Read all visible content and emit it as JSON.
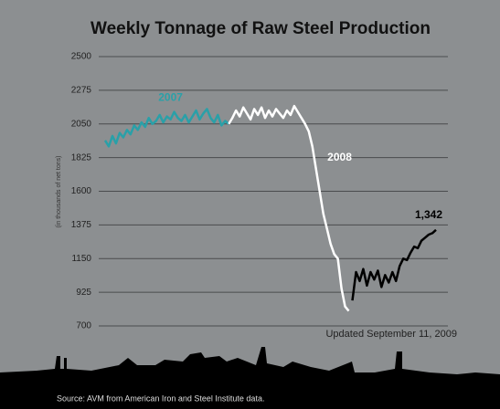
{
  "chart_data": {
    "type": "line",
    "title": "Weekly Tonnage of Raw Steel Production",
    "y_label": "(in thousands of net tons)",
    "note": "Updated September 11, 2009",
    "source": "Source: AVM from American Iron and Steel Institute data.",
    "categories": [
      null,
      null,
      null,
      null,
      null,
      null,
      null,
      null,
      null,
      null,
      null,
      null,
      null,
      null,
      null,
      null,
      null,
      null,
      null,
      null,
      null,
      null,
      null,
      null,
      null,
      null,
      null,
      null,
      null,
      null,
      null,
      null,
      null,
      null,
      null,
      null,
      null,
      null,
      null,
      null,
      null,
      null,
      null,
      null,
      null,
      null,
      null,
      null,
      null,
      null,
      null,
      null,
      null,
      null,
      null,
      null,
      null,
      null,
      null,
      null,
      null,
      null,
      null,
      null,
      null,
      null,
      null,
      null,
      null,
      null,
      null,
      null,
      null,
      null,
      null,
      null,
      null,
      null,
      null,
      null,
      null,
      null,
      null,
      null,
      null,
      null,
      null,
      null,
      null,
      null,
      null,
      null
    ],
    "series": [
      {
        "name": "2007",
        "color": "#2aa0a8",
        "values": [
          1940,
          1900,
          1970,
          1920,
          1990,
          1960,
          2010,
          1980,
          2040,
          2010,
          2060,
          2030,
          2090,
          2050,
          2070,
          2110,
          2060,
          2100,
          2080,
          2130,
          2090,
          2070,
          2110,
          2060,
          2100,
          2140,
          2080,
          2120,
          2150,
          2090,
          2060,
          2110,
          2040,
          2070,
          2050,
          null,
          null,
          null,
          null,
          null,
          null,
          null,
          null,
          null,
          null,
          null,
          null,
          null,
          null,
          null,
          null,
          null,
          null,
          null,
          null,
          null,
          null,
          null,
          null,
          null,
          null,
          null,
          null,
          null,
          null,
          null,
          null,
          null,
          null,
          null,
          null,
          null,
          null,
          null,
          null,
          null,
          null,
          null,
          null,
          null,
          null,
          null,
          null,
          null,
          null,
          null,
          null,
          null,
          null,
          null,
          null,
          null
        ]
      },
      {
        "name": "2008",
        "color": "#ffffff",
        "values": [
          null,
          null,
          null,
          null,
          null,
          null,
          null,
          null,
          null,
          null,
          null,
          null,
          null,
          null,
          null,
          null,
          null,
          null,
          null,
          null,
          null,
          null,
          null,
          null,
          null,
          null,
          null,
          null,
          null,
          null,
          null,
          null,
          null,
          null,
          2050,
          2090,
          2140,
          2100,
          2160,
          2120,
          2080,
          2150,
          2110,
          2160,
          2090,
          2140,
          2100,
          2150,
          2120,
          2090,
          2140,
          2110,
          2170,
          2130,
          2090,
          2050,
          2000,
          1900,
          1750,
          1600,
          1450,
          1350,
          1250,
          1180,
          1150,
          950,
          830,
          800,
          null,
          null,
          null,
          null,
          null,
          null,
          null,
          null,
          null,
          null,
          null,
          null,
          null,
          null,
          null,
          null,
          null,
          null,
          null,
          null,
          null,
          null,
          null,
          null
        ]
      },
      {
        "color": "#000000",
        "values": [
          null,
          null,
          null,
          null,
          null,
          null,
          null,
          null,
          null,
          null,
          null,
          null,
          null,
          null,
          null,
          null,
          null,
          null,
          null,
          null,
          null,
          null,
          null,
          null,
          null,
          null,
          null,
          null,
          null,
          null,
          null,
          null,
          null,
          null,
          null,
          null,
          null,
          null,
          null,
          null,
          null,
          null,
          null,
          null,
          null,
          null,
          null,
          null,
          null,
          null,
          null,
          null,
          null,
          null,
          null,
          null,
          null,
          null,
          null,
          null,
          null,
          null,
          null,
          null,
          null,
          null,
          null,
          null,
          870,
          1060,
          1000,
          1080,
          970,
          1060,
          1010,
          1070,
          960,
          1040,
          990,
          1060,
          1000,
          1100,
          1150,
          1140,
          1190,
          1230,
          1220,
          1270,
          1290,
          1310,
          1320,
          1342
        ],
        "value_labels": [
          null,
          null,
          null,
          null,
          null,
          null,
          null,
          null,
          null,
          null,
          null,
          null,
          null,
          null,
          null,
          null,
          null,
          null,
          null,
          null,
          null,
          null,
          null,
          null,
          null,
          null,
          null,
          null,
          null,
          null,
          null,
          null,
          null,
          null,
          null,
          null,
          null,
          null,
          null,
          null,
          null,
          null,
          null,
          null,
          null,
          null,
          null,
          null,
          null,
          null,
          null,
          null,
          null,
          null,
          null,
          null,
          null,
          null,
          null,
          null,
          null,
          null,
          null,
          null,
          null,
          null,
          null,
          null,
          null,
          null,
          null,
          null,
          null,
          null,
          null,
          null,
          null,
          null,
          null,
          null,
          null,
          null,
          null,
          null,
          null,
          null,
          null,
          null,
          null,
          null,
          null,
          "1,342"
        ]
      }
    ],
    "ylim": [
      700,
      2500
    ],
    "yticks": [
      700,
      925,
      1150,
      1375,
      1600,
      1825,
      2050,
      2275,
      2500
    ],
    "grid": true
  }
}
